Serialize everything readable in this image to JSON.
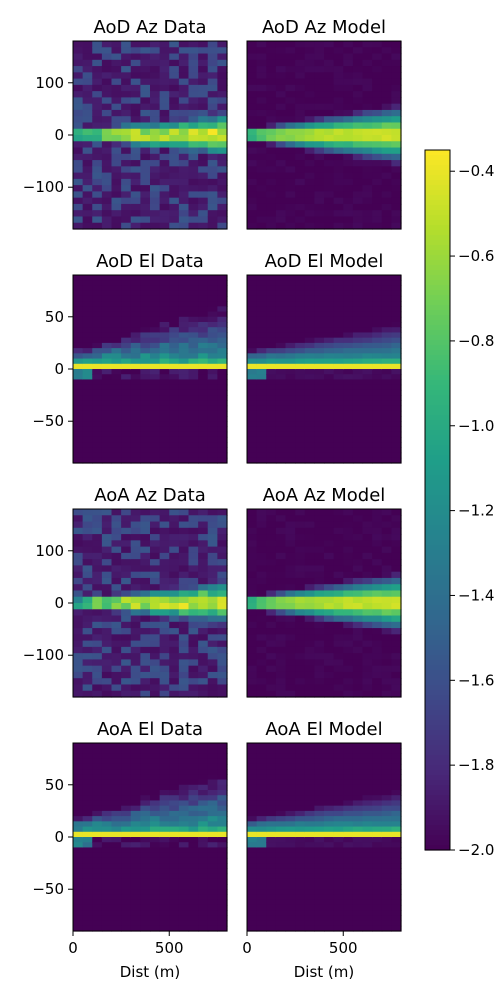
{
  "chart_data": {
    "type": "heatmap",
    "colormap": "viridis",
    "colorbar": {
      "min": -2.0,
      "max": -0.35,
      "ticks": [
        -0.4,
        -0.6,
        -0.8,
        -1.0,
        -1.2,
        -1.4,
        -1.6,
        -1.8,
        -2.0
      ],
      "tick_labels": [
        "−0.4",
        "−0.6",
        "−0.8",
        "−1.0",
        "−1.2",
        "−1.4",
        "−1.6",
        "−1.8",
        "−2.0"
      ]
    },
    "x_range": [
      0,
      800
    ],
    "x_ticks": [
      0,
      500
    ],
    "x_tick_labels": [
      "0",
      "500"
    ],
    "xlabel": "Dist (m)",
    "panels": [
      {
        "title": "AoD Az Data",
        "kind": "az",
        "source": "data",
        "y_range": [
          -180,
          180
        ],
        "y_ticks": [
          100,
          0,
          -100
        ],
        "y_tick_labels": [
          "100",
          "0",
          "−100"
        ]
      },
      {
        "title": "AoD Az Model",
        "kind": "az",
        "source": "model",
        "y_range": [
          -180,
          180
        ]
      },
      {
        "title": "AoD El Data",
        "kind": "el",
        "source": "data",
        "y_range": [
          -90,
          90
        ],
        "y_ticks": [
          50,
          0,
          -50
        ],
        "y_tick_labels": [
          "50",
          "0",
          "−50"
        ]
      },
      {
        "title": "AoD El Model",
        "kind": "el",
        "source": "model",
        "y_range": [
          -90,
          90
        ]
      },
      {
        "title": "AoA Az Data",
        "kind": "az",
        "source": "data",
        "y_range": [
          -180,
          180
        ],
        "y_ticks": [
          100,
          0,
          -100
        ],
        "y_tick_labels": [
          "100",
          "0",
          "−100"
        ]
      },
      {
        "title": "AoA Az Model",
        "kind": "az",
        "source": "model",
        "y_range": [
          -180,
          180
        ]
      },
      {
        "title": "AoA El Data",
        "kind": "el",
        "source": "data",
        "y_range": [
          -90,
          90
        ],
        "y_ticks": [
          50,
          0,
          -50
        ],
        "y_tick_labels": [
          "50",
          "0",
          "−50"
        ]
      },
      {
        "title": "AoA El Model",
        "kind": "el",
        "source": "model",
        "y_range": [
          -90,
          90
        ]
      }
    ]
  }
}
